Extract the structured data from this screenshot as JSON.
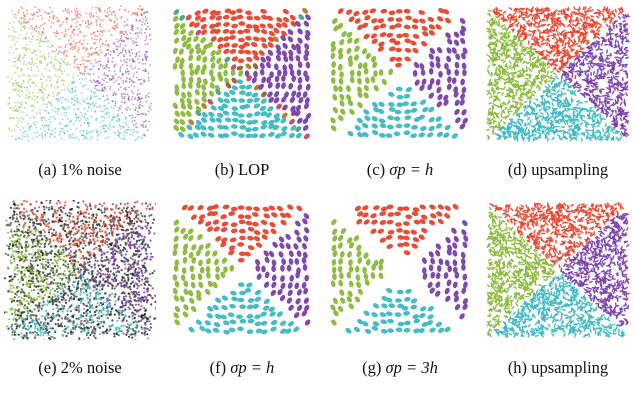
{
  "panels": [
    {
      "id": "a",
      "label": "(a)",
      "caption": "1% noise",
      "kind": "noise1"
    },
    {
      "id": "b",
      "label": "(b)",
      "caption": "LOP",
      "kind": "lop"
    },
    {
      "id": "c",
      "label": "(c)",
      "caption": "σp = h",
      "kind": "wlop1"
    },
    {
      "id": "d",
      "label": "(d)",
      "caption": "upsampling",
      "kind": "ups"
    },
    {
      "id": "e",
      "label": "(e)",
      "caption": "2% noise",
      "kind": "noise2"
    },
    {
      "id": "f",
      "label": "(f)",
      "caption": "σp = h",
      "kind": "wlop2"
    },
    {
      "id": "g",
      "label": "(g)",
      "caption": "σp = 3h",
      "kind": "wlop3"
    },
    {
      "id": "h",
      "label": "(h)",
      "caption": "upsampling",
      "kind": "ups"
    }
  ],
  "colors": {
    "top": "#e8432c",
    "right": "#7a3fa8",
    "bottom": "#3cb8c0",
    "left": "#8ab83a"
  }
}
